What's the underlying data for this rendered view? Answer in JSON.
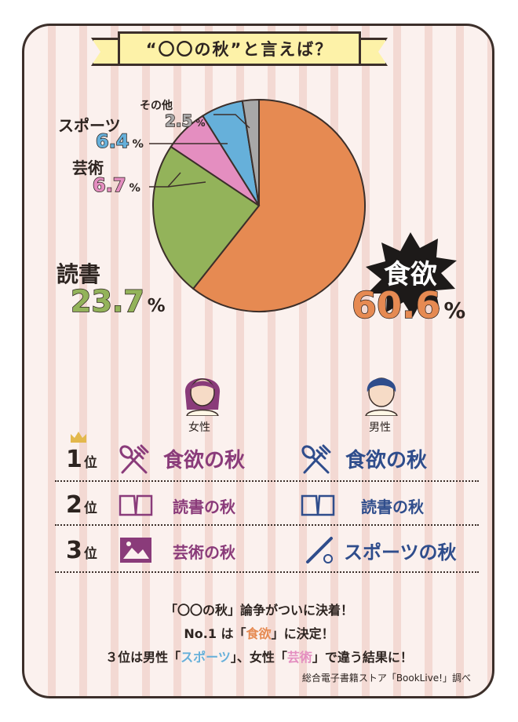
{
  "title": "“〇〇の秋”と言えば？",
  "chart_data": {
    "type": "pie",
    "title": "“〇〇の秋”と言えば？",
    "slices": [
      {
        "label": "食欲",
        "value": 60.6,
        "color": "#e68a52"
      },
      {
        "label": "読書",
        "value": 23.7,
        "color": "#93b35a"
      },
      {
        "label": "芸術",
        "value": 6.7,
        "color": "#e48ec0"
      },
      {
        "label": "スポーツ",
        "value": 6.4,
        "color": "#66b0da"
      },
      {
        "label": "その他",
        "value": 2.5,
        "color": "#a8a8a8"
      }
    ]
  },
  "labels": {
    "food_label": "食欲",
    "food_pct": "60.6",
    "reading_label": "読書",
    "reading_pct": "23.7",
    "art_label": "芸術",
    "art_pct": "6.7",
    "sports_label": "スポーツ",
    "sports_pct": "6.4",
    "other_label": "その他",
    "other_pct": "2.5",
    "unit": "%"
  },
  "gender": {
    "female": "女性",
    "male": "男性"
  },
  "ranking": [
    {
      "rank": "1",
      "suffix": "位",
      "female": "食欲の秋",
      "male": "食欲の秋",
      "female_icon": "fork-spoon-icon",
      "male_icon": "fork-spoon-icon"
    },
    {
      "rank": "2",
      "suffix": "位",
      "female": "読書の秋",
      "male": "読書の秋",
      "female_icon": "book-icon",
      "male_icon": "book-icon"
    },
    {
      "rank": "3",
      "suffix": "位",
      "female": "芸術の秋",
      "male": "スポーツの秋",
      "female_icon": "picture-icon",
      "male_icon": "bat-ball-icon"
    }
  ],
  "footer": {
    "line1": "「〇〇の秋」論争がついに決着！",
    "line2_a": "No.1 は「",
    "line2_hl": "食欲",
    "line2_b": "」に決定！",
    "line3_a": "３位は男性「",
    "line3_hl1": "スポーツ",
    "line3_b": "」、女性「",
    "line3_hl2": "芸術",
    "line3_c": "」で違う結果に！"
  },
  "source": "総合電子書籍ストア「BookLive!」調べ",
  "colors": {
    "food": "#e68a52",
    "reading": "#93b35a",
    "art": "#e48ec0",
    "sports": "#66b0da",
    "other": "#a8a8a8",
    "female": "#8a3b7a",
    "male": "#2f4d8c"
  }
}
